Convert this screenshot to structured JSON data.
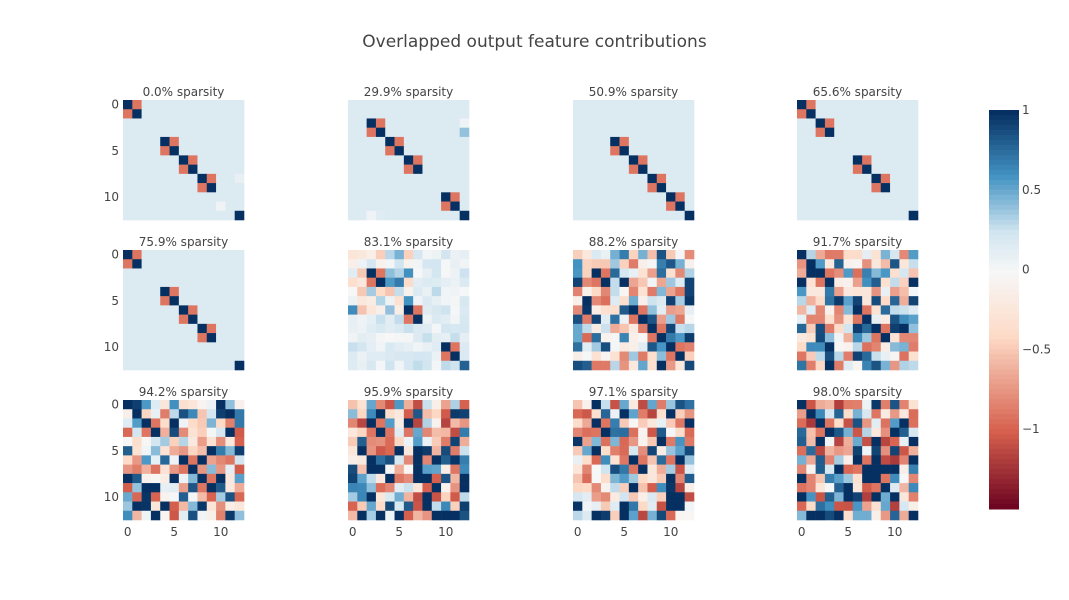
{
  "title": "Overlapped output feature contributions",
  "chart_data": {
    "type": "heatmap",
    "title": "Overlapped output feature contributions",
    "grid": false,
    "matrix_size": 13,
    "x_ticks": [
      0,
      5,
      10
    ],
    "y_ticks": [
      0,
      5,
      10
    ],
    "colorscale": "RdBu",
    "colorbar": {
      "range": [
        -1.5,
        1
      ],
      "ticks": [
        1,
        0.5,
        0,
        -0.5,
        -1
      ],
      "tick_labels": [
        "1",
        "0.5",
        "0",
        "−0.5",
        "−1"
      ],
      "placement": "right"
    },
    "colors": {
      "neg_strong": "#67001f",
      "neg_mid": "#d6604d",
      "neg_light": "#fddbc7",
      "zero": "#f7f7f7",
      "pos_light": "#d1e5f0",
      "pos_mid": "#4393c3",
      "pos_strong": "#053061"
    },
    "panels": [
      {
        "label": "0.0% sparsity",
        "pairs": [
          [
            0,
            1
          ],
          [
            4,
            5
          ],
          [
            6,
            7
          ],
          [
            8,
            9
          ]
        ],
        "extra": [
          [
            12,
            12,
            1
          ],
          [
            8,
            12,
            0.1
          ],
          [
            11,
            10,
            0.05
          ]
        ]
      },
      {
        "label": "29.9% sparsity",
        "pairs": [
          [
            2,
            3
          ],
          [
            4,
            5
          ],
          [
            6,
            7
          ],
          [
            10,
            11
          ]
        ],
        "extra": [
          [
            12,
            12,
            1
          ],
          [
            2,
            12,
            0.05
          ],
          [
            3,
            12,
            0.4
          ],
          [
            12,
            2,
            0.05
          ],
          [
            12,
            3,
            0.15
          ]
        ]
      },
      {
        "label": "50.9% sparsity",
        "pairs": [
          [
            4,
            5
          ],
          [
            6,
            7
          ],
          [
            8,
            9
          ],
          [
            10,
            11
          ]
        ],
        "extra": [
          [
            12,
            12,
            1
          ]
        ]
      },
      {
        "label": "65.6% sparsity",
        "pairs": [
          [
            0,
            1
          ],
          [
            2,
            3
          ],
          [
            6,
            7
          ],
          [
            8,
            9
          ]
        ],
        "extra": [
          [
            12,
            12,
            1
          ]
        ]
      },
      {
        "label": "75.9% sparsity",
        "pairs": [
          [
            0,
            1
          ],
          [
            4,
            5
          ],
          [
            6,
            7
          ],
          [
            8,
            9
          ]
        ],
        "extra": [
          [
            12,
            12,
            1
          ]
        ]
      },
      {
        "label": "83.1% sparsity",
        "pairs": [
          [
            2,
            3
          ],
          [
            6,
            7
          ],
          [
            10,
            11
          ]
        ],
        "noise": [
          0,
          7
        ],
        "noise_amp": 0.6,
        "tail_amp": 0.15,
        "seed": 11,
        "extra": [
          [
            12,
            12,
            0.8
          ],
          [
            3,
            5,
            0.7
          ],
          [
            5,
            6,
            0.6
          ]
        ]
      },
      {
        "label": "88.2% sparsity",
        "pairs": [
          [
            2,
            3
          ],
          [
            6,
            7
          ],
          [
            8,
            9
          ],
          [
            10,
            11
          ]
        ],
        "noise": [
          0,
          13
        ],
        "noise_amp": 1.0,
        "seed": 23,
        "extra": [
          [
            12,
            12,
            0.9
          ]
        ]
      },
      {
        "label": "91.7% sparsity",
        "pairs": [
          [
            2,
            3
          ],
          [
            6,
            7
          ],
          [
            8,
            9
          ]
        ],
        "noise": [
          0,
          13
        ],
        "noise_amp": 1.0,
        "seed": 37,
        "extra": [
          [
            12,
            12,
            0.3
          ],
          [
            0,
            0,
            1
          ],
          [
            1,
            1,
            1
          ]
        ]
      },
      {
        "label": "94.2% sparsity",
        "pairs": [
          [
            2,
            3
          ],
          [
            6,
            7
          ],
          [
            8,
            9
          ]
        ],
        "noise": [
          0,
          13
        ],
        "noise_amp": 1.1,
        "seed": 51,
        "extra": [
          [
            0,
            0,
            1
          ],
          [
            1,
            1,
            1
          ]
        ]
      },
      {
        "label": "95.9% sparsity",
        "pairs": [
          [
            2,
            3
          ]
        ],
        "noise": [
          0,
          13
        ],
        "noise_amp": 1.2,
        "seed": 67,
        "extra": [
          [
            6,
            7,
            1
          ],
          [
            7,
            7,
            1
          ],
          [
            8,
            8,
            1
          ],
          [
            9,
            9,
            1
          ],
          [
            8,
            9,
            -1
          ],
          [
            9,
            8,
            -1
          ]
        ]
      },
      {
        "label": "97.1% sparsity",
        "pairs": [
          [
            2,
            3
          ],
          [
            6,
            7
          ]
        ],
        "noise": [
          0,
          13
        ],
        "noise_amp": 1.2,
        "seed": 79,
        "extra": [
          [
            10,
            10,
            1
          ],
          [
            10,
            11,
            1
          ],
          [
            11,
            10,
            1
          ],
          [
            11,
            11,
            1
          ]
        ]
      },
      {
        "label": "98.0% sparsity",
        "pairs": [
          [
            2,
            3
          ],
          [
            6,
            7
          ],
          [
            8,
            9
          ]
        ],
        "noise": [
          0,
          13
        ],
        "noise_amp": 1.3,
        "seed": 97,
        "extra": [
          [
            0,
            0,
            1
          ],
          [
            1,
            1,
            1
          ]
        ]
      }
    ]
  }
}
